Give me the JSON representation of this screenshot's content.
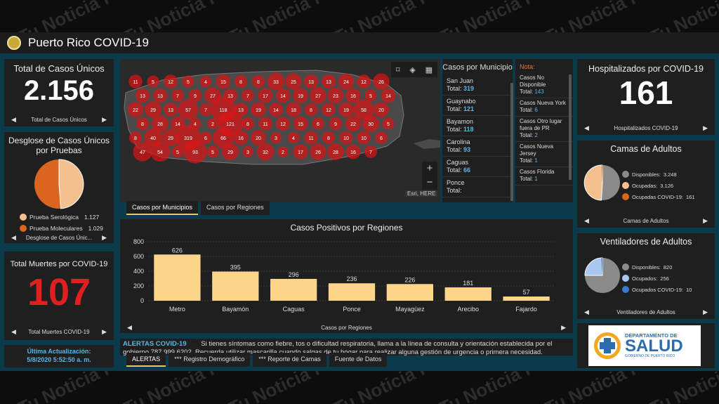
{
  "watermark": "Tu Noticia PR",
  "header": {
    "title": "Puerto Rico COVID-19"
  },
  "total_casos": {
    "title": "Total de Casos Únicos",
    "value": "2.156",
    "footer": "Total de Casos Únicos"
  },
  "desglose": {
    "title": "Desglose de Casos Únicos por Pruebas",
    "footer": "Desglose de Casos Únic...",
    "items": [
      {
        "label": "Prueba Serológica",
        "value": "1.127",
        "color": "#f5c08f"
      },
      {
        "label": "Prueba Moleculares",
        "value": "1.029",
        "color": "#d9651f"
      }
    ]
  },
  "muertes": {
    "title": "Total Muertes por COVID-19",
    "value": "107",
    "footer": "Total Muertes COVID-19",
    "color": "#e02020"
  },
  "actualizacion": {
    "label": "Última Actualización:",
    "value": "5/8/2020 5:52:50 a. m."
  },
  "map": {
    "attribution": "Esri, HERE",
    "tool_icons": [
      "bookmark-icon",
      "layers-icon",
      "qr-icon"
    ],
    "bubble_labels": [
      "11",
      "13",
      "22",
      "8",
      "8",
      "47",
      "5",
      "13",
      "29",
      "28",
      "40",
      "54",
      "12",
      "7",
      "13",
      "14",
      "29",
      "5",
      "5",
      "9",
      "57",
      "4",
      "319",
      "93",
      "4",
      "27",
      "7",
      "2",
      "6",
      "5",
      "15",
      "13",
      "118",
      "121",
      "66",
      "29",
      "8",
      "7",
      "13",
      "8",
      "16",
      "3",
      "8",
      "17",
      "19",
      "11",
      "20",
      "32",
      "33",
      "14",
      "14",
      "12",
      "3",
      "2",
      "25",
      "19",
      "18",
      "15",
      "4",
      "17",
      "13",
      "27",
      "8",
      "6",
      "11",
      "26",
      "13",
      "23",
      "12",
      "9",
      "8",
      "28",
      "24",
      "16",
      "19",
      "22",
      "10",
      "16",
      "12",
      "5",
      "58",
      "30",
      "10",
      "7",
      "26",
      "14",
      "20",
      "5",
      "6"
    ]
  },
  "municipios": {
    "title": "Casos por Municipio",
    "items": [
      {
        "name": "San Juan",
        "total_label": "Total:",
        "total": "319"
      },
      {
        "name": "Guaynabo",
        "total_label": "Total:",
        "total": "121"
      },
      {
        "name": "Bayamon",
        "total_label": "Total:",
        "total": "118"
      },
      {
        "name": "Carolina",
        "total_label": "Total:",
        "total": "93"
      },
      {
        "name": "Caguas",
        "total_label": "Total:",
        "total": "66"
      },
      {
        "name": "Ponce",
        "total_label": "Total:",
        "total": ""
      }
    ]
  },
  "nota": {
    "title": "Nota:",
    "items": [
      {
        "name": "Casos No Disponible",
        "total_label": "Total:",
        "total": "143"
      },
      {
        "name": "Casos Nueva York",
        "total_label": "Total:",
        "total": "6"
      },
      {
        "name": "Casos Otro lugar fuera de PR",
        "total_label": "Total:",
        "total": "2"
      },
      {
        "name": "Casos Nueva Jersey",
        "total_label": "Total:",
        "total": "1"
      },
      {
        "name": "Casos Florida",
        "total_label": "Total:",
        "total": "1"
      }
    ]
  },
  "map_tabs": [
    "Casos por Municipios",
    "Casos por Regiones"
  ],
  "chart_data": {
    "type": "bar",
    "title": "Casos Positivos por Regiones",
    "categories": [
      "Metro",
      "Bayamón",
      "Caguas",
      "Ponce",
      "Mayagüez",
      "Arecibo",
      "Fajardo"
    ],
    "values": [
      626,
      395,
      296,
      236,
      226,
      181,
      57
    ],
    "ylim": [
      0,
      800
    ],
    "yticks": [
      0,
      200,
      400,
      600,
      800
    ],
    "color": "#fdd58a",
    "footer": "Casos por Regiones",
    "grid": true
  },
  "alertas": {
    "label": "ALERTAS COVID-19",
    "text": "Si tienes síntomas como fiebre, tos o dificultad respiratoria, llama a la línea de consulta y orientación establecida por el gobierno 787.999.6202. Recuerda utilizar mascarilla cuando salgas de tu hogar para realizar alguna gestión de urgencia o primera necesidad."
  },
  "bottom_tabs": [
    "ALERTAS",
    "*** Registro Demográfico",
    "*** Reporte de Camas",
    "Fuente de Datos"
  ],
  "hospitalizados": {
    "title": "Hospitalizados por COVID-19",
    "value": "161",
    "footer": "Hospitalizados COVID-19"
  },
  "camas": {
    "title": "Camas de Adultos",
    "footer": "Camas de Adultos",
    "items": [
      {
        "label": "Disponibles:",
        "value": "3.248",
        "color": "#8a8a8a"
      },
      {
        "label": "Ocupadas:",
        "value": "3.126",
        "color": "#f5c08f"
      },
      {
        "label": "Ocupadas COVID-19:",
        "value": "161",
        "color": "#d9651f"
      }
    ]
  },
  "ventiladores": {
    "title": "Ventiladores de Adultos",
    "footer": "Ventiladores de Adultos",
    "items": [
      {
        "label": "Disponibles:",
        "value": "820",
        "color": "#8a8a8a"
      },
      {
        "label": "Ocupados:",
        "value": "256",
        "color": "#a9c7f0"
      },
      {
        "label": "Ocupados COVID-19:",
        "value": "10",
        "color": "#3b78c9"
      }
    ]
  },
  "salud_logo": {
    "line1": "DEPARTAMENTO DE",
    "line2": "SALUD",
    "line3": "GOBIERNO DE PUERTO RICO"
  },
  "nav": {
    "prev": "◀",
    "next": "▶"
  }
}
